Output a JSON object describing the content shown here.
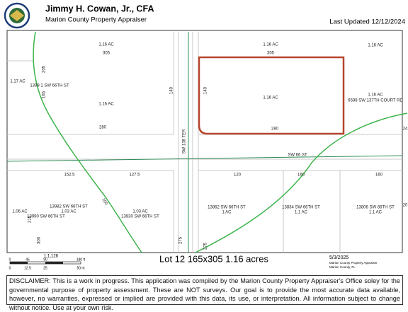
{
  "header": {
    "title": "Jimmy H. Cowan, Jr., CFA",
    "subtitle": "Marion County Property Appraiser",
    "updated": "Last Updated 12/12/2024"
  },
  "map": {
    "labels": [
      "1.16 AC",
      "305",
      "1.16 AC",
      "305",
      "1.16 AC",
      "1.17 AC",
      "1399 1 SW 66TH ST",
      "205",
      "165",
      "1.16 AC",
      "140",
      "280",
      "140",
      "1.16 AC",
      "280",
      "1.16 AC",
      "6598 SW 137TH COURT RD",
      "24",
      "SW 138 TER",
      "SW 66 ST",
      "152.5",
      "127.5",
      "120",
      "160",
      "160",
      "13982 SW 66TH ST",
      "1.03 AC",
      "1.06 AC",
      "13990 SW 66TH ST",
      "1.03 AC",
      "13930 SW 66TH ST",
      "100",
      "210",
      "300",
      "275",
      "275",
      "13862 SW 66TH ST",
      "1 AC",
      "13834 SW 66TH ST",
      "1.1 AC",
      "13806 SW 66TH ST",
      "1.1 AC",
      "20"
    ]
  },
  "scale": {
    "ratio": "1:1,128",
    "feet": [
      "0",
      "45",
      "90",
      "180 ft"
    ],
    "meters": [
      "0",
      "12.5",
      "25",
      "50 m"
    ]
  },
  "footer": {
    "lot": "Lot 12  165x305 1.16 acres",
    "date": "5/3/2025",
    "source": "Marion County Property Appraiser",
    "place": "Marion County, FL"
  },
  "disclaimer": "DISCLAIMER: This is a work in progress. This application was compiled by the Marion County Property Appraiser's Office soley for the governmental purpose of property assessment. These are NOT surveys. Our goal is to provide the most accurate data available, however, no warranties, expressed or implied are provided with this data, its use, or interpretation. All information subject to change without notice. Use at your own risk."
}
